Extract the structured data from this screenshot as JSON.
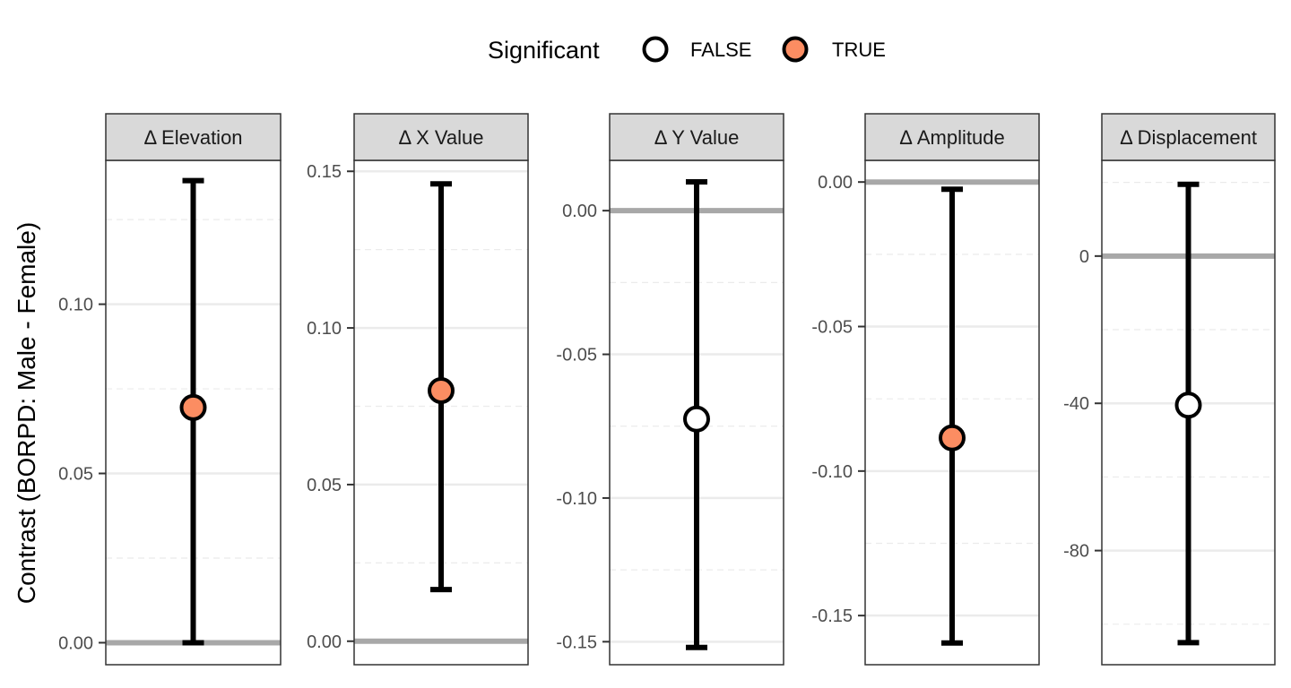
{
  "chart_data": {
    "type": "scatter",
    "ylabel": "Contrast (BORPD: Male - Female)",
    "legend": {
      "title": "Significant",
      "position": "top",
      "entries": [
        {
          "label": "FALSE",
          "color": "#ffffff"
        },
        {
          "label": "TRUE",
          "color": "#fc8d62"
        }
      ]
    },
    "reference_line": 0,
    "grid": true,
    "panels": [
      {
        "label": "Δ Elevation",
        "ylim": [
          -0.0065,
          0.1425
        ],
        "ticks": [
          0.0,
          0.05,
          0.1
        ],
        "tick_labels": [
          "0.00",
          "0.05",
          "0.10"
        ],
        "estimate": 0.0695,
        "lower": 0.0,
        "upper": 0.1365,
        "significant": true
      },
      {
        "label": "Δ X Value",
        "ylim": [
          -0.0075,
          0.1535
        ],
        "ticks": [
          0.0,
          0.05,
          0.1,
          0.15
        ],
        "tick_labels": [
          "0.00",
          "0.05",
          "0.10",
          "0.15"
        ],
        "estimate": 0.08,
        "lower": 0.0165,
        "upper": 0.146,
        "significant": true
      },
      {
        "label": "Δ Y Value",
        "ylim": [
          -0.158,
          0.0175
        ],
        "ticks": [
          0.0,
          -0.05,
          -0.1,
          -0.15
        ],
        "tick_labels": [
          "0.00",
          "-0.05",
          "-0.10",
          "-0.15"
        ],
        "estimate": -0.0725,
        "lower": -0.152,
        "upper": 0.01,
        "significant": false
      },
      {
        "label": "Δ Amplitude",
        "ylim": [
          -0.167,
          0.0075
        ],
        "ticks": [
          0.0,
          -0.05,
          -0.1,
          -0.15
        ],
        "tick_labels": [
          "0.00",
          "-0.05",
          "-0.10",
          "-0.15"
        ],
        "estimate": -0.0885,
        "lower": -0.1595,
        "upper": -0.0025,
        "significant": true
      },
      {
        "label": "Δ Displacement",
        "ylim": [
          -111.0,
          26.0
        ],
        "ticks": [
          0,
          -40,
          -80
        ],
        "tick_labels": [
          "0",
          "-40",
          "-80"
        ],
        "estimate": -40.5,
        "lower": -105.0,
        "upper": 19.5,
        "significant": false
      }
    ]
  }
}
